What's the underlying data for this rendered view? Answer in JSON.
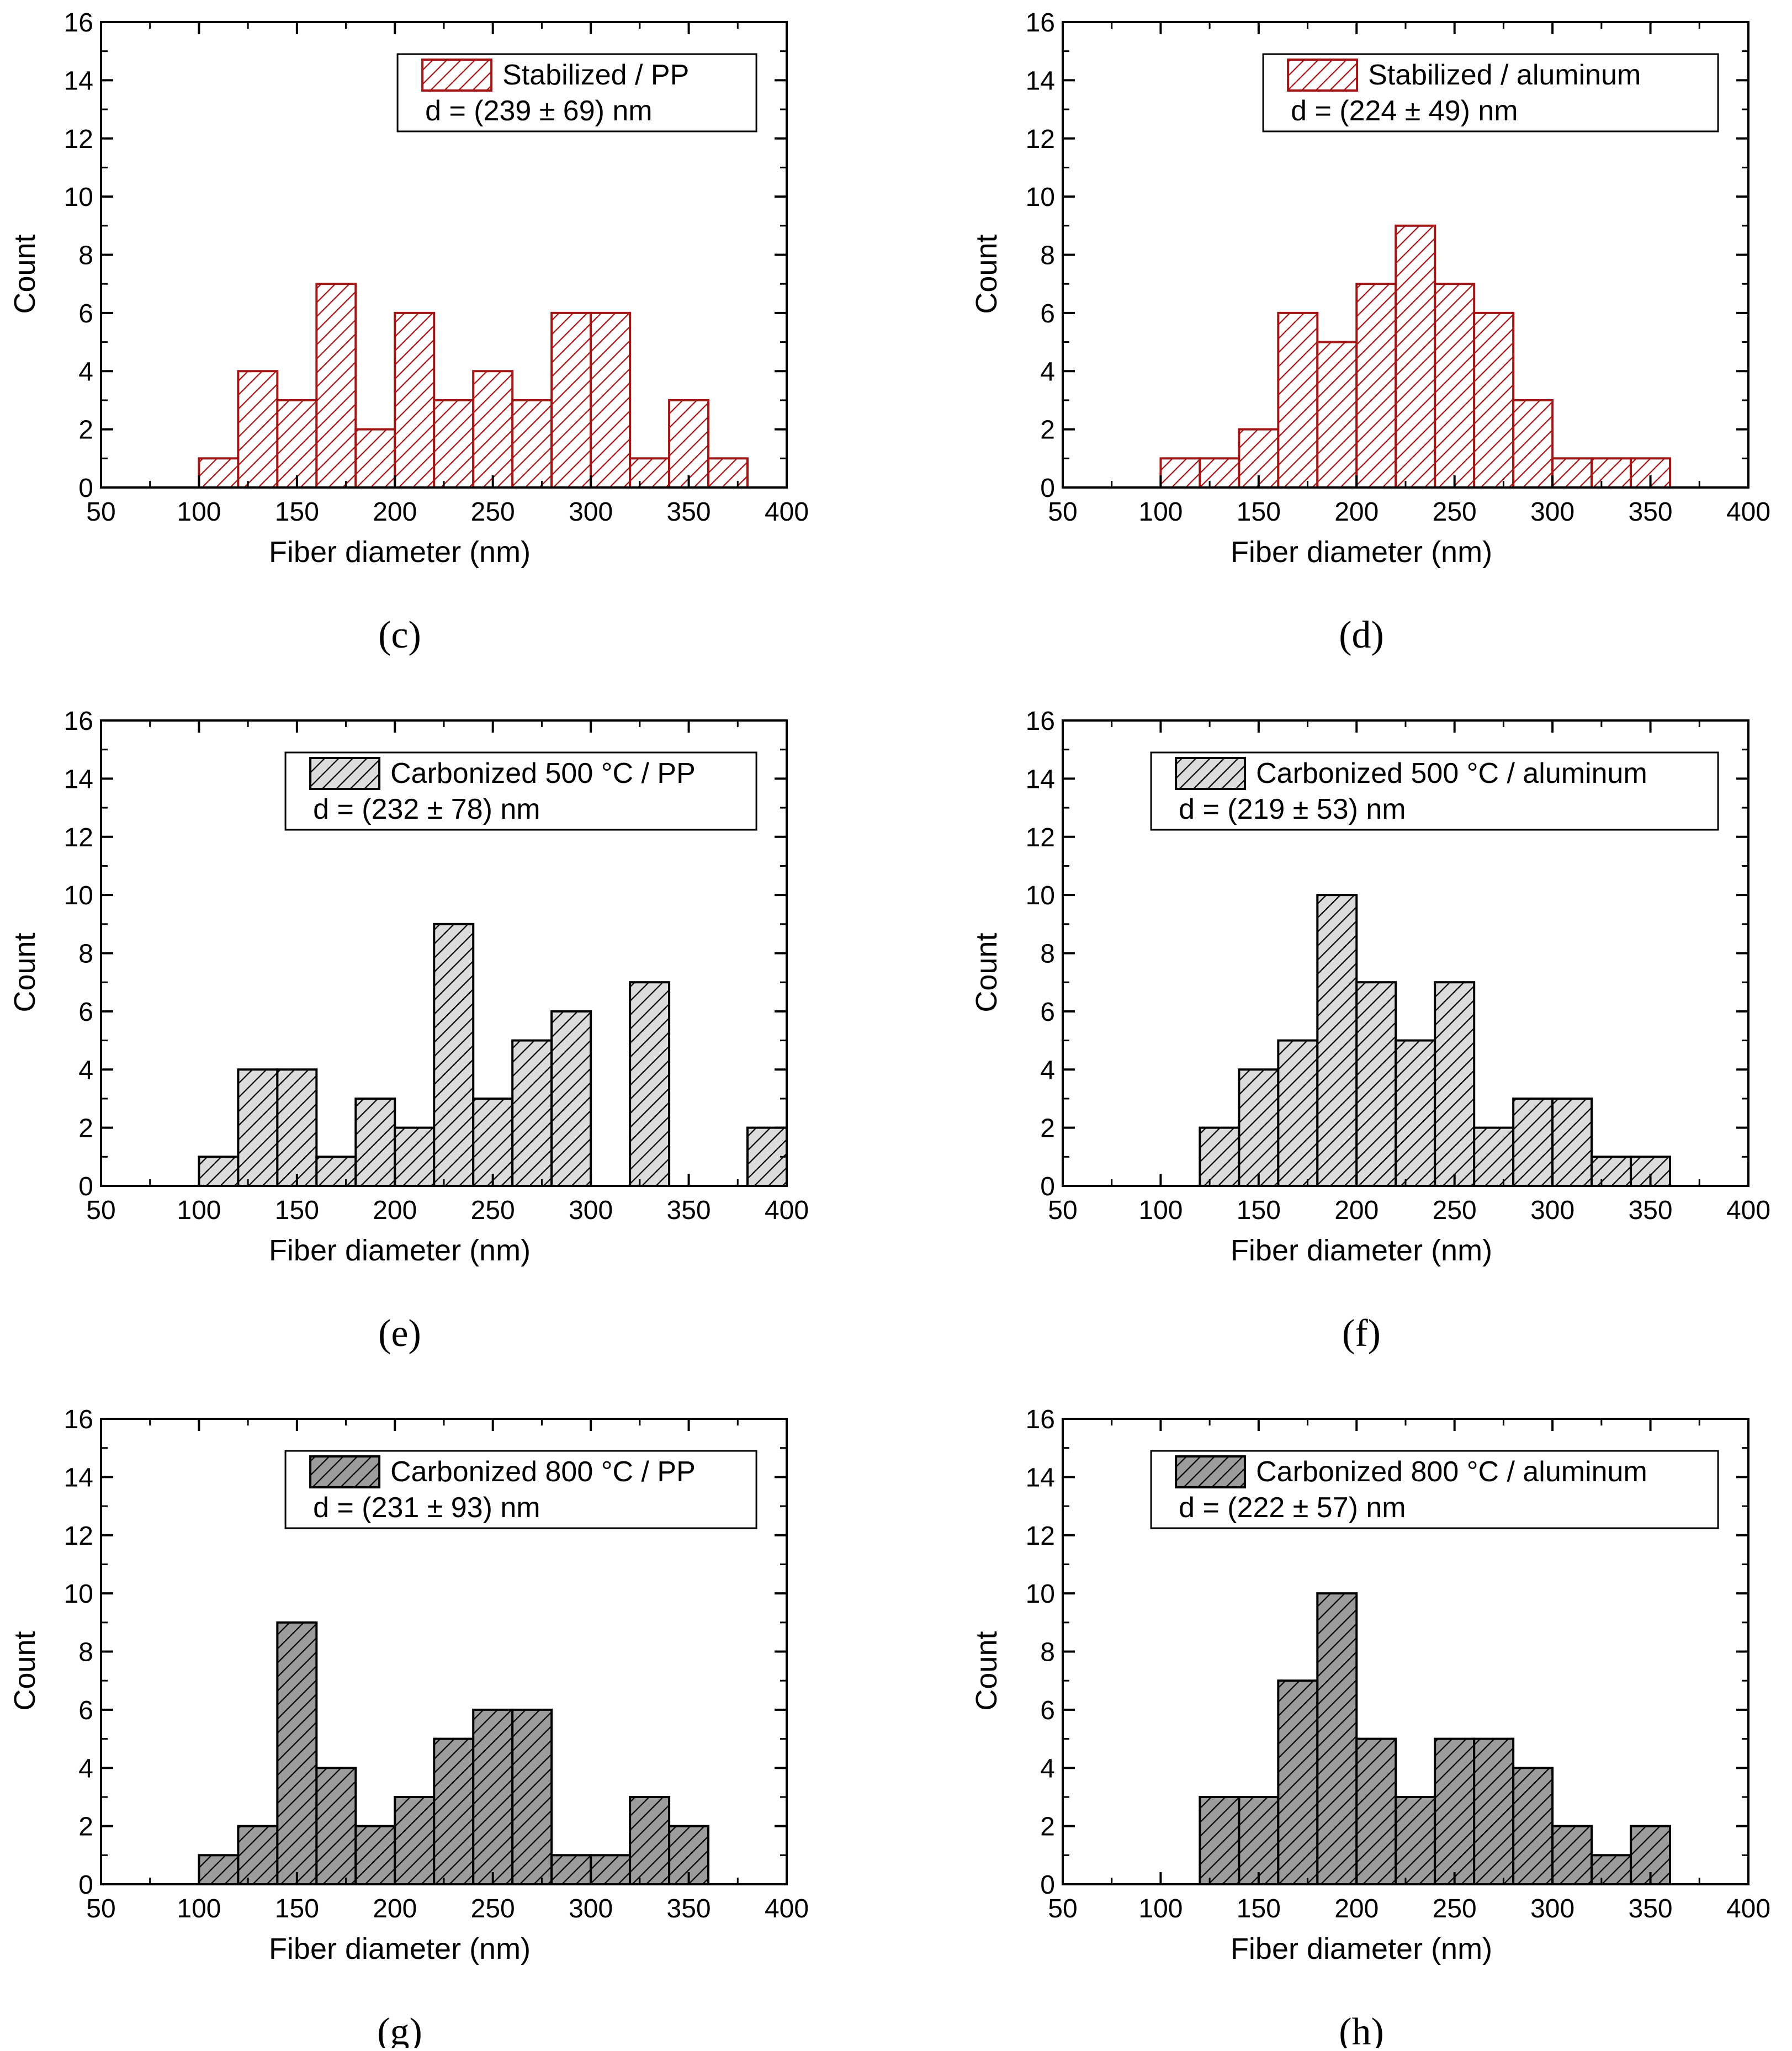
{
  "chart_data": [
    {
      "type": "bar",
      "panel": "(c)",
      "title": "",
      "xlabel": "Fiber diameter (nm)",
      "ylabel": "Count",
      "xlim": [
        50,
        400
      ],
      "ylim": [
        0,
        16
      ],
      "xticks": [
        50,
        100,
        150,
        200,
        250,
        300,
        350,
        400
      ],
      "yticks": [
        0,
        2,
        4,
        6,
        8,
        10,
        12,
        14,
        16
      ],
      "bin_width": 20,
      "bin_starts": [
        100,
        120,
        140,
        160,
        180,
        200,
        220,
        240,
        260,
        280,
        300,
        320,
        340,
        360
      ],
      "values": [
        1,
        4,
        3,
        7,
        2,
        6,
        3,
        4,
        3,
        6,
        6,
        1,
        3,
        1
      ],
      "legend": {
        "label": "Stabilized / PP",
        "stat": "d = (239 ± 69) nm",
        "position": "top-right"
      },
      "style": {
        "fill": "#ffffff",
        "hatch": "#a31515",
        "edge": "#a31515"
      }
    },
    {
      "type": "bar",
      "panel": "(d)",
      "title": "",
      "xlabel": "Fiber diameter (nm)",
      "ylabel": "Count",
      "xlim": [
        50,
        400
      ],
      "ylim": [
        0,
        16
      ],
      "xticks": [
        50,
        100,
        150,
        200,
        250,
        300,
        350,
        400
      ],
      "yticks": [
        0,
        2,
        4,
        6,
        8,
        10,
        12,
        14,
        16
      ],
      "bin_width": 20,
      "bin_starts": [
        100,
        120,
        140,
        160,
        180,
        200,
        220,
        240,
        260,
        280,
        300,
        320,
        340
      ],
      "values": [
        1,
        1,
        2,
        6,
        5,
        7,
        9,
        7,
        6,
        3,
        1,
        1,
        1
      ],
      "legend": {
        "label": "Stabilized / aluminum",
        "stat": "d = (224 ± 49) nm",
        "position": "top-right"
      },
      "style": {
        "fill": "#ffffff",
        "hatch": "#a31515",
        "edge": "#a31515"
      }
    },
    {
      "type": "bar",
      "panel": "(e)",
      "title": "",
      "xlabel": "Fiber diameter (nm)",
      "ylabel": "Count",
      "xlim": [
        50,
        400
      ],
      "ylim": [
        0,
        16
      ],
      "xticks": [
        50,
        100,
        150,
        200,
        250,
        300,
        350,
        400
      ],
      "yticks": [
        0,
        2,
        4,
        6,
        8,
        10,
        12,
        14,
        16
      ],
      "bin_width": 20,
      "bin_starts": [
        100,
        120,
        140,
        160,
        180,
        200,
        220,
        240,
        260,
        280,
        300,
        320,
        340,
        360,
        380
      ],
      "values": [
        1,
        4,
        4,
        1,
        3,
        2,
        9,
        3,
        5,
        6,
        0,
        7,
        0,
        0,
        2
      ],
      "legend": {
        "label": "Carbonized 500 °C / PP",
        "stat": "d = (232 ± 78) nm",
        "position": "top-right"
      },
      "style": {
        "fill": "#dcdcdc",
        "hatch": "#000000",
        "edge": "#000000"
      }
    },
    {
      "type": "bar",
      "panel": "(f)",
      "title": "",
      "xlabel": "Fiber diameter (nm)",
      "ylabel": "Count",
      "xlim": [
        50,
        400
      ],
      "ylim": [
        0,
        16
      ],
      "xticks": [
        50,
        100,
        150,
        200,
        250,
        300,
        350,
        400
      ],
      "yticks": [
        0,
        2,
        4,
        6,
        8,
        10,
        12,
        14,
        16
      ],
      "bin_width": 20,
      "bin_starts": [
        120,
        140,
        160,
        180,
        200,
        220,
        240,
        260,
        280,
        300,
        320,
        340
      ],
      "values": [
        2,
        4,
        5,
        10,
        7,
        5,
        7,
        2,
        3,
        3,
        1,
        1
      ],
      "legend": {
        "label": "Carbonized 500 °C / aluminum",
        "stat": "d = (219 ± 53) nm",
        "position": "top-right"
      },
      "style": {
        "fill": "#dcdcdc",
        "hatch": "#000000",
        "edge": "#000000"
      }
    },
    {
      "type": "bar",
      "panel": "(g)",
      "title": "",
      "xlabel": "Fiber diameter (nm)",
      "ylabel": "Count",
      "xlim": [
        50,
        400
      ],
      "ylim": [
        0,
        16
      ],
      "xticks": [
        50,
        100,
        150,
        200,
        250,
        300,
        350,
        400
      ],
      "yticks": [
        0,
        2,
        4,
        6,
        8,
        10,
        12,
        14,
        16
      ],
      "bin_width": 20,
      "bin_starts": [
        100,
        120,
        140,
        160,
        180,
        200,
        220,
        240,
        260,
        280,
        300,
        320,
        340
      ],
      "values": [
        1,
        2,
        9,
        4,
        2,
        3,
        5,
        6,
        6,
        1,
        1,
        3,
        2
      ],
      "legend": {
        "label": "Carbonized 800 °C / PP",
        "stat": "d = (231 ± 93) nm",
        "position": "top-right"
      },
      "style": {
        "fill": "#9c9c9c",
        "hatch": "#000000",
        "edge": "#000000"
      }
    },
    {
      "type": "bar",
      "panel": "(h)",
      "title": "",
      "xlabel": "Fiber diameter (nm)",
      "ylabel": "Count",
      "xlim": [
        50,
        400
      ],
      "ylim": [
        0,
        16
      ],
      "xticks": [
        50,
        100,
        150,
        200,
        250,
        300,
        350,
        400
      ],
      "yticks": [
        0,
        2,
        4,
        6,
        8,
        10,
        12,
        14,
        16
      ],
      "bin_width": 20,
      "bin_starts": [
        120,
        140,
        160,
        180,
        200,
        220,
        240,
        260,
        280,
        300,
        320,
        340
      ],
      "values": [
        3,
        3,
        7,
        10,
        5,
        3,
        5,
        5,
        4,
        2,
        1,
        2
      ],
      "legend": {
        "label": "Carbonized 800 °C / aluminum",
        "stat": "d = (222 ± 57) nm",
        "position": "top-right"
      },
      "style": {
        "fill": "#9c9c9c",
        "hatch": "#000000",
        "edge": "#000000"
      }
    }
  ]
}
